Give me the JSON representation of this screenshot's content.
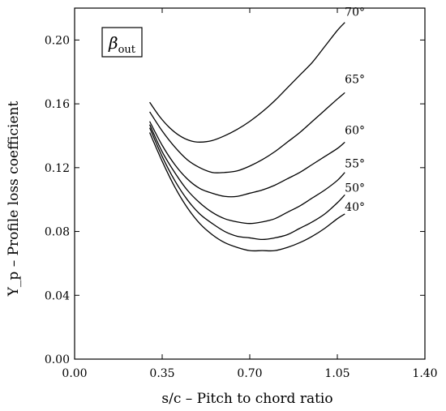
{
  "chart_data": {
    "type": "line",
    "xlabel": "s/c – Pitch to chord ratio",
    "ylabel": "Y_p – Profile loss coefficient",
    "xlim": [
      0.0,
      1.4
    ],
    "ylim": [
      0.0,
      0.22
    ],
    "xticks": [
      "0.00",
      "0.35",
      "0.70",
      "1.05",
      "1.40"
    ],
    "yticks": [
      "0.00",
      "0.04",
      "0.08",
      "0.12",
      "0.16",
      "0.20"
    ],
    "grid": false,
    "legend": {
      "text": "β",
      "subscript": "out",
      "position": "top-left"
    },
    "series": [
      {
        "name": "70°",
        "x": [
          0.3,
          0.34,
          0.38,
          0.42,
          0.46,
          0.5,
          0.55,
          0.6,
          0.65,
          0.7,
          0.75,
          0.8,
          0.85,
          0.9,
          0.95,
          1.0,
          1.05,
          1.08
        ],
        "values": [
          0.161,
          0.152,
          0.145,
          0.14,
          0.137,
          0.136,
          0.137,
          0.14,
          0.144,
          0.149,
          0.155,
          0.162,
          0.17,
          0.178,
          0.186,
          0.196,
          0.206,
          0.211
        ]
      },
      {
        "name": "65°",
        "x": [
          0.3,
          0.35,
          0.4,
          0.45,
          0.5,
          0.55,
          0.6,
          0.65,
          0.7,
          0.75,
          0.8,
          0.85,
          0.9,
          0.95,
          1.0,
          1.05,
          1.08
        ],
        "values": [
          0.155,
          0.143,
          0.133,
          0.125,
          0.12,
          0.117,
          0.117,
          0.118,
          0.121,
          0.125,
          0.13,
          0.136,
          0.142,
          0.149,
          0.156,
          0.163,
          0.167
        ]
      },
      {
        "name": "60°",
        "x": [
          0.3,
          0.35,
          0.4,
          0.45,
          0.5,
          0.55,
          0.6,
          0.65,
          0.7,
          0.75,
          0.8,
          0.85,
          0.9,
          0.95,
          1.0,
          1.05,
          1.08
        ],
        "values": [
          0.149,
          0.134,
          0.122,
          0.113,
          0.107,
          0.104,
          0.102,
          0.102,
          0.104,
          0.106,
          0.109,
          0.113,
          0.117,
          0.122,
          0.127,
          0.132,
          0.136
        ]
      },
      {
        "name": "55°",
        "x": [
          0.3,
          0.35,
          0.4,
          0.45,
          0.5,
          0.55,
          0.6,
          0.65,
          0.7,
          0.75,
          0.8,
          0.85,
          0.9,
          0.95,
          1.0,
          1.05,
          1.08
        ],
        "values": [
          0.147,
          0.13,
          0.117,
          0.106,
          0.098,
          0.092,
          0.088,
          0.086,
          0.085,
          0.086,
          0.088,
          0.092,
          0.096,
          0.101,
          0.106,
          0.112,
          0.117
        ]
      },
      {
        "name": "50°",
        "x": [
          0.3,
          0.35,
          0.4,
          0.45,
          0.5,
          0.55,
          0.6,
          0.65,
          0.7,
          0.75,
          0.8,
          0.85,
          0.9,
          0.95,
          1.0,
          1.05,
          1.08
        ],
        "values": [
          0.145,
          0.127,
          0.112,
          0.1,
          0.091,
          0.085,
          0.08,
          0.077,
          0.076,
          0.075,
          0.076,
          0.078,
          0.082,
          0.086,
          0.091,
          0.098,
          0.103
        ]
      },
      {
        "name": "40°",
        "x": [
          0.3,
          0.35,
          0.4,
          0.45,
          0.5,
          0.55,
          0.6,
          0.65,
          0.7,
          0.75,
          0.8,
          0.85,
          0.9,
          0.95,
          1.0,
          1.05,
          1.08
        ],
        "values": [
          0.142,
          0.124,
          0.108,
          0.095,
          0.085,
          0.078,
          0.073,
          0.07,
          0.068,
          0.068,
          0.068,
          0.07,
          0.073,
          0.077,
          0.082,
          0.088,
          0.091
        ]
      }
    ]
  }
}
